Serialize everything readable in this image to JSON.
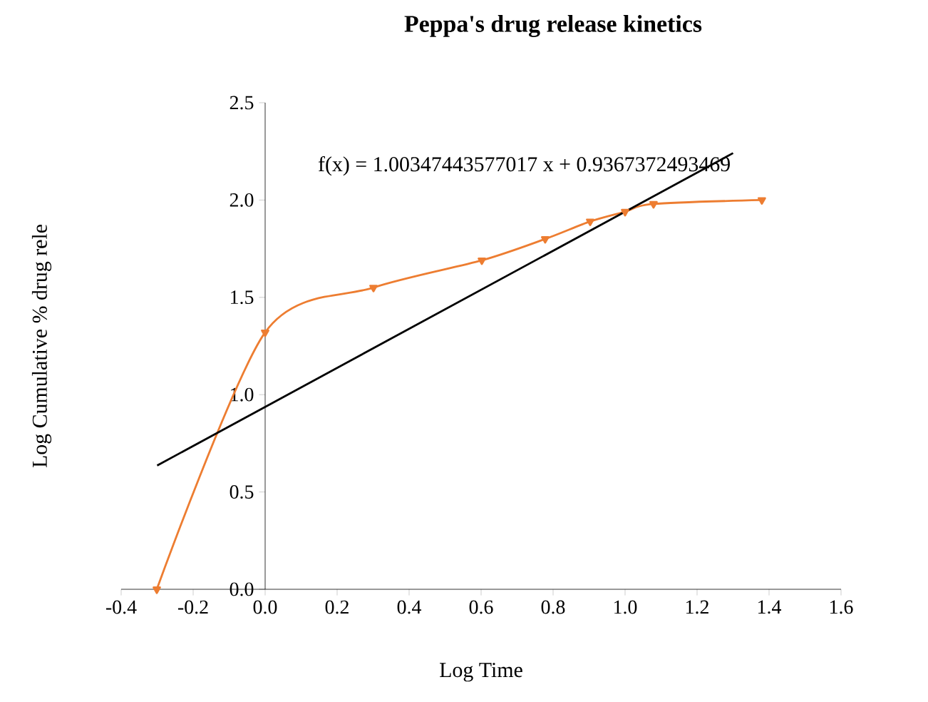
{
  "chart_data": {
    "type": "line",
    "title": "Peppa's drug release kinetics",
    "xlabel": "Log Time",
    "ylabel": "Log Cumulative % drug rele",
    "annotations": [
      "f(x) = 1.00347443577017  x + 0.9367372493469"
    ],
    "marker": "triangle",
    "series": [
      {
        "color": "#ed7d31",
        "x": [
          -0.301,
          0,
          0.301,
          0.602,
          0.778,
          0.903,
          1.0,
          1.079,
          1.38
        ],
        "values": [
          0,
          1.32,
          1.55,
          1.69,
          1.8,
          1.89,
          1.94,
          1.98,
          2.0
        ]
      },
      {
        "color": "#000000",
        "marker": "none",
        "x": [
          -0.3,
          1.3
        ],
        "values": [
          0.636,
          2.241
        ]
      }
    ],
    "xlim": [
      -0.4,
      1.6
    ],
    "ylim": [
      0,
      2.5
    ],
    "xticks": [
      -0.4,
      -0.2,
      {
        "value": 0,
        "label": "0.0"
      },
      0.2,
      0.4,
      0.6,
      0.8,
      {
        "value": 1,
        "label": "1.0"
      },
      1.2,
      1.4,
      1.6
    ],
    "yticks": [
      {
        "value": 0,
        "label": "0.0"
      },
      0.5,
      {
        "value": 1,
        "label": "1.0"
      },
      1.5,
      {
        "value": 2,
        "label": "2.0"
      },
      2.5
    ]
  }
}
